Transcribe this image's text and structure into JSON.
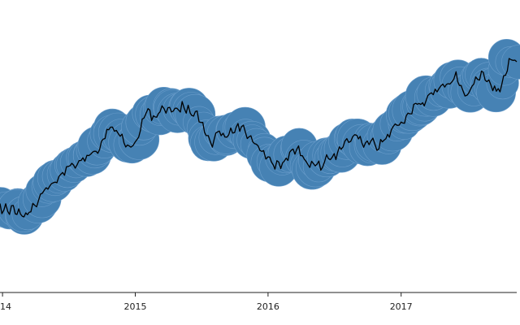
{
  "chart_data": {
    "type": "line",
    "title": "",
    "xlabel": "",
    "ylabel": "",
    "grid": false,
    "legend": "none",
    "x_tick_labels": [
      "14",
      "2015",
      "2016",
      "2017"
    ],
    "x_ticks": [
      "2014-01-01",
      "2015-01-01",
      "2016-01-01",
      "2017-01-01"
    ],
    "x_range": [
      "2013-12-25",
      "2017-11-15"
    ],
    "y_range": [
      0,
      100
    ],
    "series": [
      {
        "style": "black line with blue circle band",
        "points": [
          [
            "2013-12-25",
            19
          ],
          [
            "2014-01-15",
            17
          ],
          [
            "2014-02-05",
            18
          ],
          [
            "2014-03-01",
            15
          ],
          [
            "2014-03-20",
            17
          ],
          [
            "2014-04-10",
            23
          ],
          [
            "2014-05-01",
            28
          ],
          [
            "2014-05-20",
            32
          ],
          [
            "2014-06-10",
            35
          ],
          [
            "2014-07-01",
            39
          ],
          [
            "2014-07-20",
            41
          ],
          [
            "2014-08-10",
            44
          ],
          [
            "2014-09-01",
            45
          ],
          [
            "2014-09-20",
            48
          ],
          [
            "2014-10-10",
            54
          ],
          [
            "2014-10-25",
            59
          ],
          [
            "2014-11-10",
            57
          ],
          [
            "2014-12-01",
            53
          ],
          [
            "2014-12-20",
            50
          ],
          [
            "2015-01-01",
            52
          ],
          [
            "2015-01-20",
            61
          ],
          [
            "2015-02-05",
            68
          ],
          [
            "2015-02-20",
            65
          ],
          [
            "2015-03-10",
            68
          ],
          [
            "2015-04-01",
            70
          ],
          [
            "2015-04-20",
            68
          ],
          [
            "2015-05-10",
            70
          ],
          [
            "2015-06-01",
            68
          ],
          [
            "2015-06-20",
            66
          ],
          [
            "2015-07-01",
            62
          ],
          [
            "2015-07-15",
            55
          ],
          [
            "2015-08-01",
            52
          ],
          [
            "2015-08-20",
            57
          ],
          [
            "2015-09-10",
            55
          ],
          [
            "2015-10-01",
            58
          ],
          [
            "2015-10-20",
            60
          ],
          [
            "2015-11-05",
            55
          ],
          [
            "2015-11-20",
            52
          ],
          [
            "2015-12-05",
            51
          ],
          [
            "2015-12-20",
            46
          ],
          [
            "2016-01-01",
            44
          ],
          [
            "2016-01-20",
            40
          ],
          [
            "2016-02-05",
            40
          ],
          [
            "2016-02-20",
            44
          ],
          [
            "2016-03-10",
            48
          ],
          [
            "2016-03-25",
            50
          ],
          [
            "2016-04-10",
            43
          ],
          [
            "2016-04-25",
            38
          ],
          [
            "2016-05-10",
            42
          ],
          [
            "2016-05-25",
            40
          ],
          [
            "2016-06-10",
            44
          ],
          [
            "2016-07-01",
            44
          ],
          [
            "2016-07-20",
            49
          ],
          [
            "2016-08-10",
            52
          ],
          [
            "2016-09-01",
            55
          ],
          [
            "2016-09-20",
            50
          ],
          [
            "2016-10-10",
            53
          ],
          [
            "2016-11-01",
            50
          ],
          [
            "2016-11-20",
            55
          ],
          [
            "2016-12-10",
            58
          ],
          [
            "2017-01-01",
            62
          ],
          [
            "2017-01-20",
            66
          ],
          [
            "2017-02-10",
            70
          ],
          [
            "2017-03-01",
            72
          ],
          [
            "2017-03-20",
            76
          ],
          [
            "2017-04-10",
            78
          ],
          [
            "2017-05-01",
            82
          ],
          [
            "2017-05-15",
            80
          ],
          [
            "2017-06-01",
            86
          ],
          [
            "2017-06-15",
            80
          ],
          [
            "2017-07-01",
            76
          ],
          [
            "2017-07-20",
            82
          ],
          [
            "2017-08-10",
            88
          ],
          [
            "2017-08-25",
            84
          ],
          [
            "2017-09-10",
            80
          ],
          [
            "2017-09-25",
            78
          ],
          [
            "2017-10-10",
            85
          ],
          [
            "2017-10-25",
            94
          ],
          [
            "2017-11-15",
            92
          ]
        ]
      }
    ]
  },
  "colors": {
    "band": "#4682b4",
    "band_edge": "#6a9dcb",
    "line": "#000000",
    "axis": "#222222",
    "background": "#ffffff"
  }
}
